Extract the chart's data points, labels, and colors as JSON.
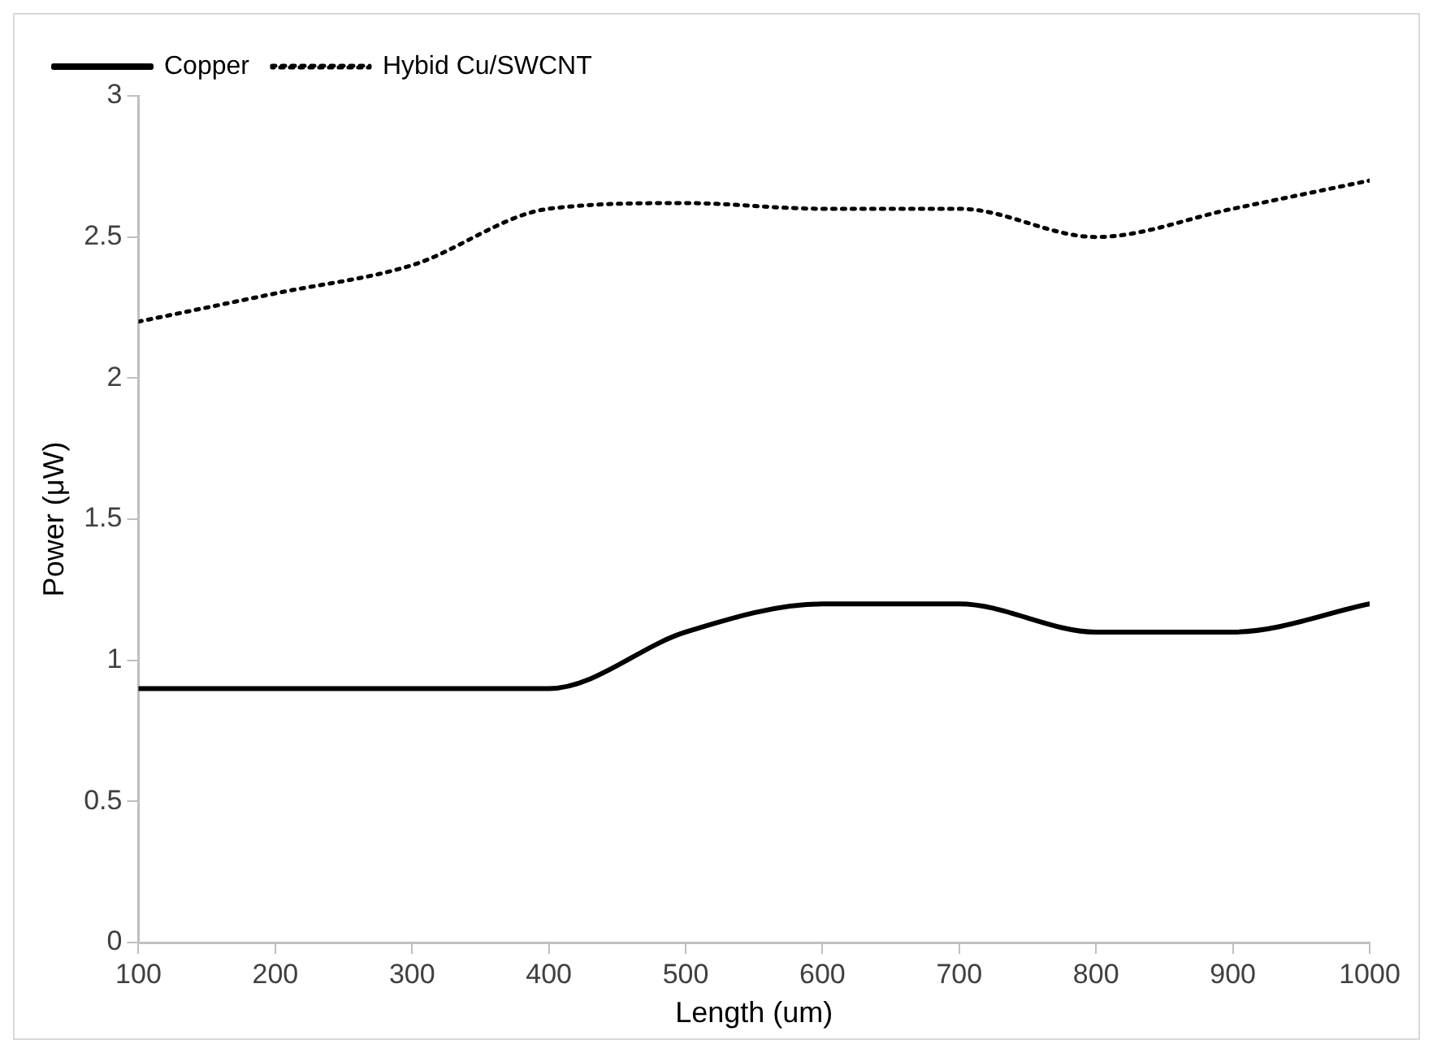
{
  "chart_data": {
    "type": "line",
    "xlabel": "Length (um)",
    "ylabel": "Power (μW)",
    "x": [
      100,
      200,
      300,
      400,
      500,
      600,
      700,
      800,
      900,
      1000
    ],
    "series": [
      {
        "name": "Copper",
        "color": "#000000",
        "line_style": "solid",
        "values": [
          0.9,
          0.9,
          0.9,
          0.9,
          1.1,
          1.2,
          1.2,
          1.1,
          1.1,
          1.2
        ]
      },
      {
        "name": "Hybid Cu/SWCNT",
        "color": "#000000",
        "line_style": "dotted",
        "values": [
          2.2,
          2.3,
          2.4,
          2.6,
          2.62,
          2.6,
          2.6,
          2.5,
          2.6,
          2.7
        ]
      }
    ],
    "xlim": [
      100,
      1000
    ],
    "xticks": [
      100,
      200,
      300,
      400,
      500,
      600,
      700,
      800,
      900,
      1000
    ],
    "ylim": [
      0,
      3
    ],
    "yticks": [
      0,
      0.5,
      1,
      1.5,
      2,
      2.5,
      3
    ],
    "grid": false,
    "legend": "top left",
    "marker": "none"
  }
}
